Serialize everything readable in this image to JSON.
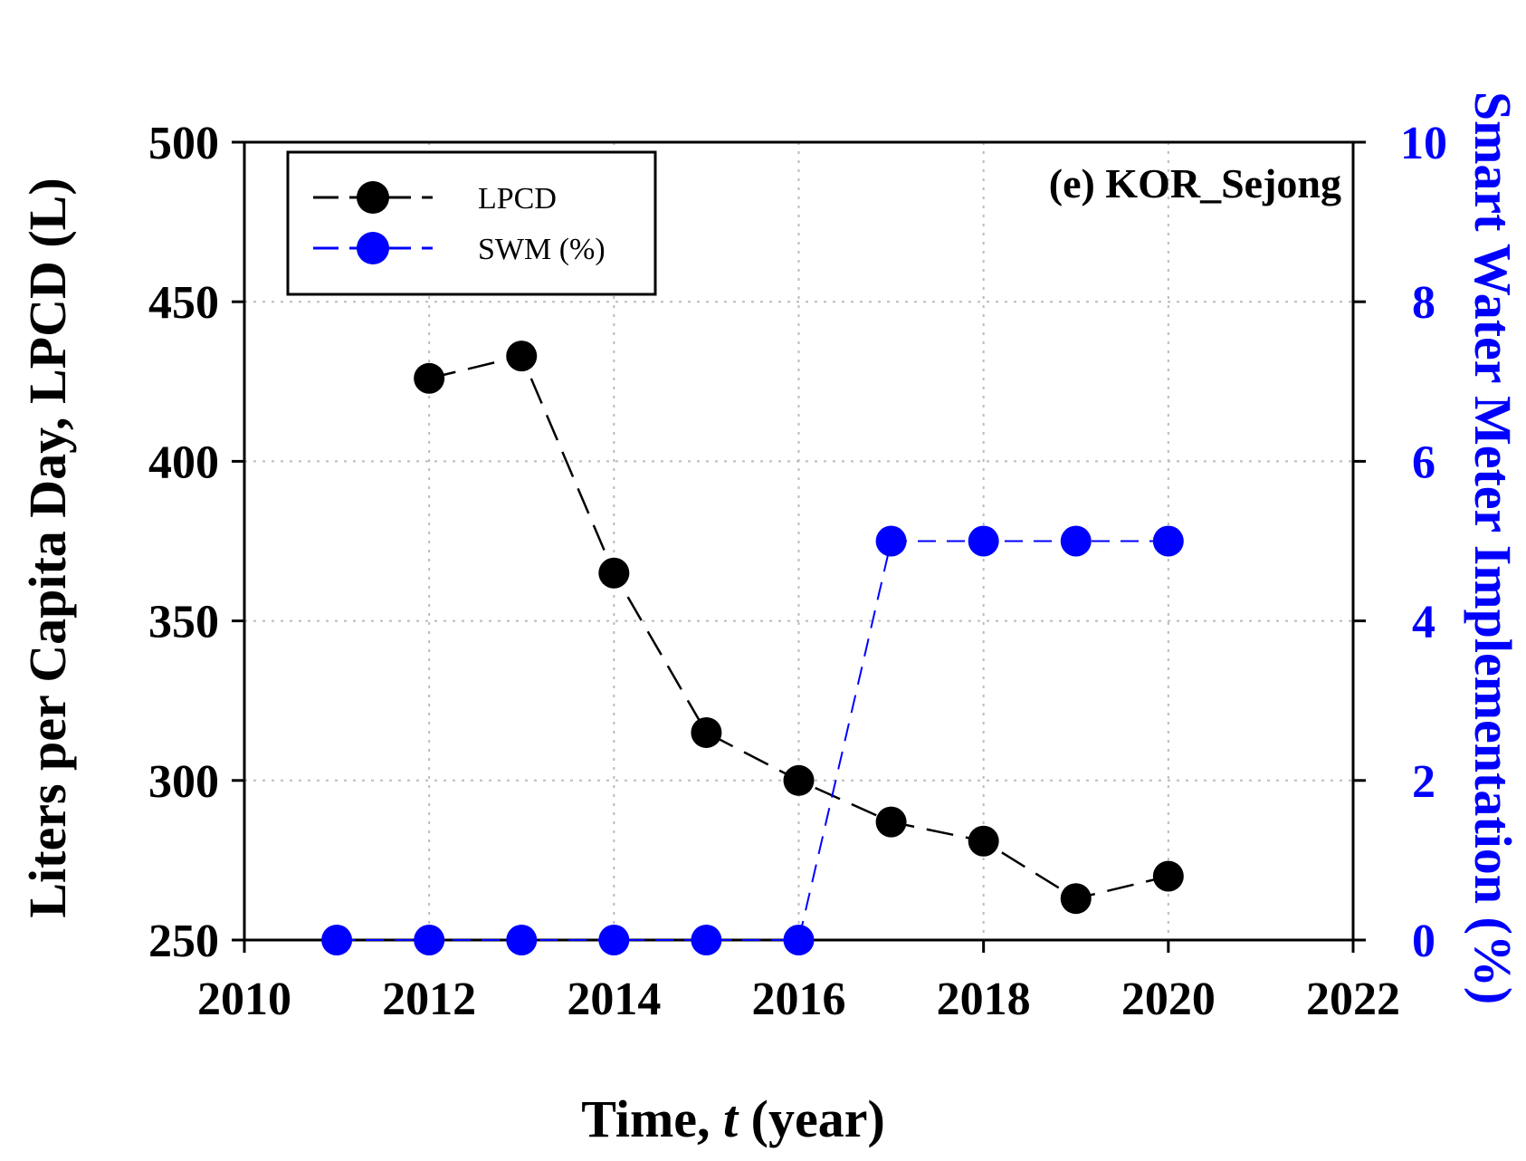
{
  "chart_data": {
    "type": "line",
    "panel_label": "(e) KOR_Sejong",
    "xlabel_prefix": "Time, ",
    "xlabel_var": "t",
    "xlabel_suffix": " (year)",
    "ylabel_left": "Liters per Capita Day, LPCD (L)",
    "ylabel_right": "Smart Water Meter Implementation (%)",
    "xlim": [
      2010,
      2022
    ],
    "ylim_left": [
      250,
      500
    ],
    "ylim_right": [
      0,
      10
    ],
    "x_ticks": [
      "2010",
      "2012",
      "2014",
      "2016",
      "2018",
      "2020",
      "2022"
    ],
    "y_left_ticks": [
      "250",
      "300",
      "350",
      "400",
      "450",
      "500"
    ],
    "y_right_ticks": [
      "0",
      "2",
      "4",
      "6",
      "8",
      "10"
    ],
    "grid": true,
    "legend_position": "top-left",
    "colors": {
      "lpcd": "#000000",
      "swm": "#0000ff",
      "grid": "#bbbbbb"
    },
    "series": [
      {
        "name": "LPCD",
        "axis": "left",
        "x": [
          2012,
          2013,
          2014,
          2015,
          2016,
          2017,
          2018,
          2019,
          2020
        ],
        "values": [
          426,
          433,
          365,
          315,
          300,
          287,
          281,
          263,
          270
        ]
      },
      {
        "name": "SWM (%)",
        "axis": "right",
        "x": [
          2011,
          2012,
          2013,
          2014,
          2015,
          2016,
          2017,
          2018,
          2019,
          2020
        ],
        "values": [
          0,
          0,
          0,
          0,
          0,
          0,
          5,
          5,
          5,
          5
        ]
      }
    ]
  }
}
